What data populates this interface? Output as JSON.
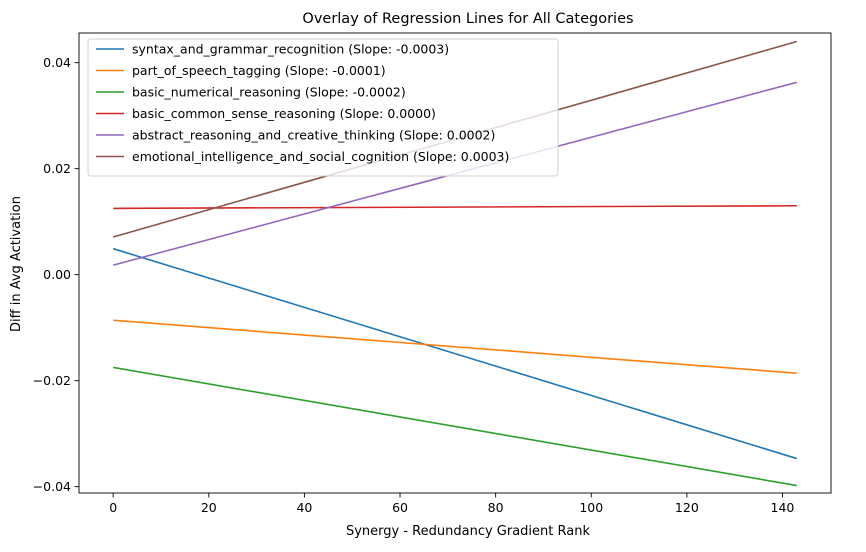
{
  "chart_data": {
    "type": "line",
    "title": "Overlay of Regression Lines for All Categories",
    "xlabel": "Synergy - Redundancy Gradient Rank",
    "ylabel": "Diff in Avg Activation",
    "xlim": [
      -7.15,
      150.15
    ],
    "ylim": [
      -0.0412,
      0.0456
    ],
    "x_ticks": [
      0,
      20,
      40,
      60,
      80,
      100,
      120,
      140
    ],
    "x_tick_labels": [
      "0",
      "20",
      "40",
      "60",
      "80",
      "100",
      "120",
      "140"
    ],
    "y_ticks": [
      -0.04,
      -0.02,
      0.0,
      0.02,
      0.04
    ],
    "y_tick_labels": [
      "−0.04",
      "−0.02",
      "0.00",
      "0.02",
      "0.04"
    ],
    "grid": false,
    "legend_position": "top-left",
    "series": [
      {
        "name": "syntax_and_grammar_recognition (Slope: -0.0003)",
        "color": "#1f77b4",
        "x": [
          0,
          143
        ],
        "y": [
          0.0049,
          -0.0347
        ]
      },
      {
        "name": "part_of_speech_tagging (Slope: -0.0001)",
        "color": "#ff7f0e",
        "x": [
          0,
          143
        ],
        "y": [
          -0.0086,
          -0.0186
        ]
      },
      {
        "name": "basic_numerical_reasoning (Slope: -0.0002)",
        "color": "#2ca02c",
        "x": [
          0,
          143
        ],
        "y": [
          -0.0175,
          -0.0398
        ]
      },
      {
        "name": "basic_common_sense_reasoning (Slope: 0.0000)",
        "color": "#d62728",
        "x": [
          0,
          143
        ],
        "y": [
          0.0125,
          0.013
        ]
      },
      {
        "name": "abstract_reasoning_and_creative_thinking (Slope: 0.0002)",
        "color": "#9467bd",
        "x": [
          0,
          143
        ],
        "y": [
          0.0018,
          0.0363
        ]
      },
      {
        "name": "emotional_intelligence_and_social_cognition (Slope: 0.0003)",
        "color": "#8c564b",
        "x": [
          0,
          143
        ],
        "y": [
          0.0071,
          0.044
        ]
      }
    ]
  }
}
